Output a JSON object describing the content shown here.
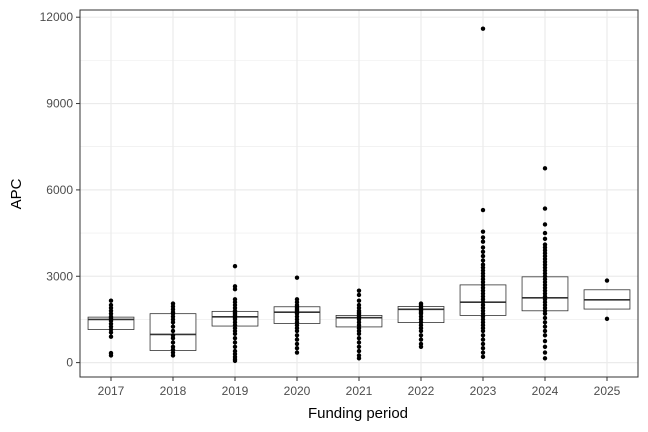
{
  "chart_data": {
    "type": "box",
    "xlabel": "Funding period",
    "ylabel": "APC",
    "ylim": [
      -500,
      12250
    ],
    "y_ticks": [
      0,
      3000,
      6000,
      9000,
      12000
    ],
    "y_tick_labels": [
      "0",
      "3000",
      "6000",
      "9000",
      "12000"
    ],
    "grid": true,
    "categories": [
      "2017",
      "2018",
      "2019",
      "2020",
      "2021",
      "2022",
      "2023",
      "2024",
      "2025"
    ],
    "boxes": [
      {
        "category": "2017",
        "q1": 1150,
        "median": 1500,
        "q3": 1580
      },
      {
        "category": "2018",
        "q1": 420,
        "median": 980,
        "q3": 1700
      },
      {
        "category": "2019",
        "q1": 1270,
        "median": 1590,
        "q3": 1780
      },
      {
        "category": "2020",
        "q1": 1360,
        "median": 1750,
        "q3": 1940
      },
      {
        "category": "2021",
        "q1": 1240,
        "median": 1560,
        "q3": 1640
      },
      {
        "category": "2022",
        "q1": 1390,
        "median": 1850,
        "q3": 1950
      },
      {
        "category": "2023",
        "q1": 1640,
        "median": 2100,
        "q3": 2700
      },
      {
        "category": "2024",
        "q1": 1800,
        "median": 2250,
        "q3": 2980
      },
      {
        "category": "2025",
        "q1": 1860,
        "median": 2180,
        "q3": 2530
      }
    ],
    "points": [
      {
        "category": "2017",
        "values": [
          250,
          330,
          900,
          1050,
          1150,
          1250,
          1350,
          1450,
          1500,
          1550,
          1600,
          1700,
          1800,
          1900,
          2000,
          2150
        ]
      },
      {
        "category": "2018",
        "values": [
          250,
          350,
          450,
          550,
          700,
          850,
          950,
          1100,
          1250,
          1400,
          1500,
          1600,
          1700,
          1750,
          1850,
          1950,
          2050
        ]
      },
      {
        "category": "2019",
        "values": [
          60,
          120,
          200,
          300,
          400,
          550,
          700,
          850,
          1000,
          1100,
          1200,
          1300,
          1400,
          1500,
          1550,
          1600,
          1650,
          1700,
          1750,
          1800,
          1900,
          2000,
          2100,
          2200,
          2550,
          2650,
          3350
        ]
      },
      {
        "category": "2020",
        "values": [
          350,
          500,
          650,
          800,
          950,
          1100,
          1200,
          1300,
          1400,
          1500,
          1600,
          1700,
          1750,
          1800,
          1850,
          1900,
          1950,
          2000,
          2100,
          2200,
          2950
        ]
      },
      {
        "category": "2021",
        "values": [
          150,
          250,
          400,
          550,
          700,
          850,
          1000,
          1100,
          1200,
          1300,
          1400,
          1500,
          1550,
          1600,
          1650,
          1700,
          1750,
          1800,
          1900,
          2000,
          2150,
          2350,
          2500
        ]
      },
      {
        "category": "2022",
        "values": [
          550,
          650,
          800,
          950,
          1100,
          1200,
          1300,
          1400,
          1500,
          1600,
          1700,
          1750,
          1800,
          1850,
          1900,
          1950,
          2000,
          2050
        ]
      },
      {
        "category": "2023",
        "values": [
          200,
          350,
          500,
          650,
          800,
          950,
          1100,
          1200,
          1300,
          1400,
          1500,
          1600,
          1700,
          1800,
          1900,
          2000,
          2100,
          2200,
          2300,
          2400,
          2500,
          2600,
          2700,
          2800,
          2900,
          3000,
          3100,
          3200,
          3300,
          3400,
          3550,
          3700,
          3850,
          4000,
          4200,
          4350,
          4550,
          5300,
          11600
        ]
      },
      {
        "category": "2024",
        "values": [
          150,
          350,
          550,
          750,
          950,
          1100,
          1250,
          1400,
          1550,
          1700,
          1800,
          1900,
          2000,
          2100,
          2200,
          2300,
          2400,
          2500,
          2600,
          2700,
          2800,
          2900,
          3000,
          3100,
          3200,
          3300,
          3400,
          3500,
          3600,
          3700,
          3800,
          3900,
          4000,
          4100,
          4300,
          4500,
          4800,
          5350,
          6750
        ]
      },
      {
        "category": "2025",
        "values": [
          1520,
          2850
        ]
      }
    ]
  }
}
